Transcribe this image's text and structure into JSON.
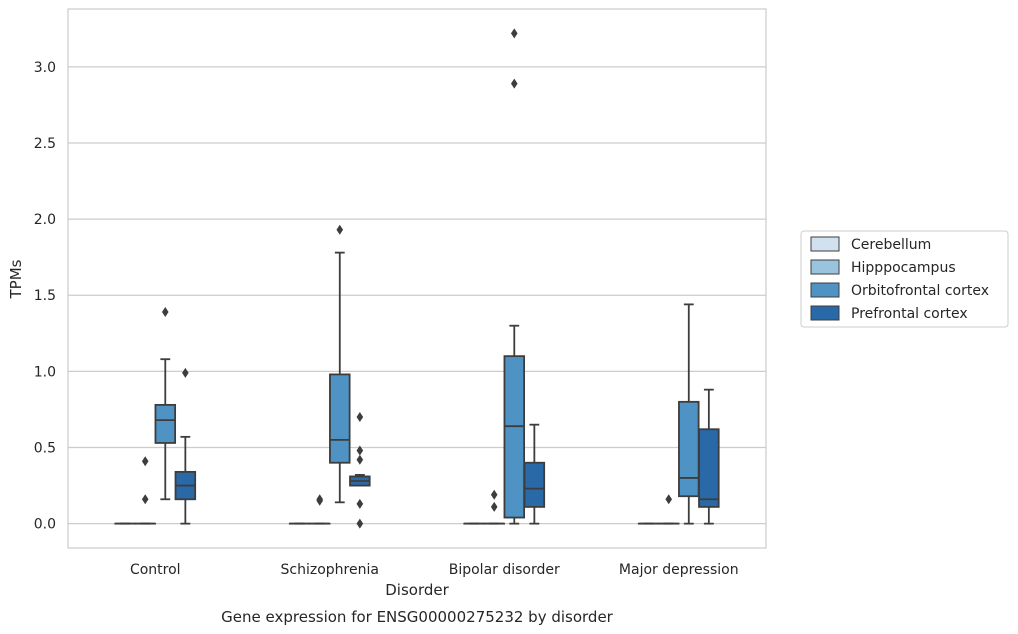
{
  "caption": "Gene expression for ENSG00000275232 by disorder",
  "chart_data": {
    "type": "box",
    "xlabel": "Disorder",
    "ylabel": "TPMs",
    "ylim": [
      -0.16,
      3.38
    ],
    "yticks": [
      0.0,
      0.5,
      1.0,
      1.5,
      2.0,
      2.5,
      3.0
    ],
    "ytick_labels": [
      "0.0",
      "0.5",
      "1.0",
      "1.5",
      "2.0",
      "2.5",
      "3.0"
    ],
    "grid": "horizontal",
    "legend_position": "right",
    "categories": [
      "Control",
      "Schizophrenia",
      "Bipolar disorder",
      "Major depression"
    ],
    "series": [
      {
        "name": "Cerebellum",
        "color": "#d1e1f0",
        "boxes": [
          {
            "whislo": 0.0,
            "q1": 0.0,
            "med": 0.0,
            "q3": 0.0,
            "whishi": 0.0,
            "fliers": []
          },
          {
            "whislo": 0.0,
            "q1": 0.0,
            "med": 0.0,
            "q3": 0.0,
            "whishi": 0.0,
            "fliers": []
          },
          {
            "whislo": 0.0,
            "q1": 0.0,
            "med": 0.0,
            "q3": 0.0,
            "whishi": 0.0,
            "fliers": []
          },
          {
            "whislo": 0.0,
            "q1": 0.0,
            "med": 0.0,
            "q3": 0.0,
            "whishi": 0.0,
            "fliers": []
          }
        ]
      },
      {
        "name": "Hipppocampus",
        "color": "#9ac4de",
        "boxes": [
          {
            "whislo": 0.0,
            "q1": 0.0,
            "med": 0.0,
            "q3": 0.0,
            "whishi": 0.0,
            "fliers": [
              0.41,
              0.16
            ]
          },
          {
            "whislo": 0.0,
            "q1": 0.0,
            "med": 0.0,
            "q3": 0.0,
            "whishi": 0.0,
            "fliers": [
              0.15,
              0.16
            ]
          },
          {
            "whislo": 0.0,
            "q1": 0.0,
            "med": 0.0,
            "q3": 0.0,
            "whishi": 0.0,
            "fliers": [
              0.11,
              0.19
            ]
          },
          {
            "whislo": 0.0,
            "q1": 0.0,
            "med": 0.0,
            "q3": 0.0,
            "whishi": 0.0,
            "fliers": [
              0.16
            ]
          }
        ]
      },
      {
        "name": "Orbitofrontal cortex",
        "color": "#4f93c4",
        "boxes": [
          {
            "whislo": 0.16,
            "q1": 0.53,
            "med": 0.68,
            "q3": 0.78,
            "whishi": 1.08,
            "fliers": [
              1.39
            ]
          },
          {
            "whislo": 0.14,
            "q1": 0.4,
            "med": 0.55,
            "q3": 0.98,
            "whishi": 1.78,
            "fliers": [
              1.93
            ]
          },
          {
            "whislo": 0.0,
            "q1": 0.04,
            "med": 0.64,
            "q3": 1.1,
            "whishi": 1.3,
            "fliers": [
              2.89,
              3.22
            ]
          },
          {
            "whislo": 0.0,
            "q1": 0.18,
            "med": 0.3,
            "q3": 0.8,
            "whishi": 1.44,
            "fliers": []
          }
        ]
      },
      {
        "name": "Prefrontal cortex",
        "color": "#2a69a8",
        "boxes": [
          {
            "whislo": 0.0,
            "q1": 0.16,
            "med": 0.25,
            "q3": 0.34,
            "whishi": 0.57,
            "fliers": [
              0.99
            ]
          },
          {
            "whislo": 0.25,
            "q1": 0.25,
            "med": 0.28,
            "q3": 0.31,
            "whishi": 0.32,
            "fliers": [
              0.7,
              0.48,
              0.42,
              0.13,
              0.0
            ]
          },
          {
            "whislo": 0.0,
            "q1": 0.11,
            "med": 0.23,
            "q3": 0.4,
            "whishi": 0.65,
            "fliers": []
          },
          {
            "whislo": 0.0,
            "q1": 0.11,
            "med": 0.16,
            "q3": 0.62,
            "whishi": 0.88,
            "fliers": []
          }
        ]
      }
    ]
  }
}
